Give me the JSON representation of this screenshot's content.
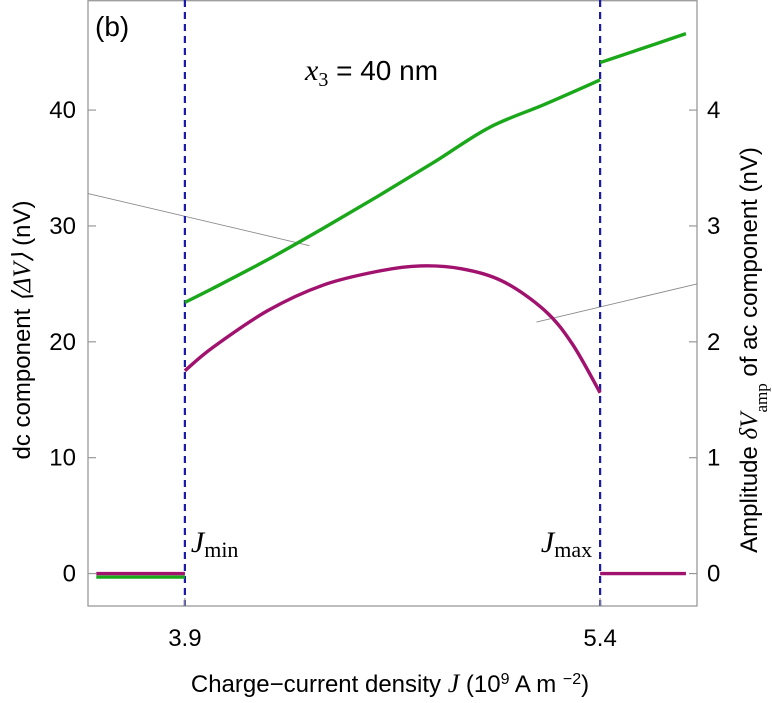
{
  "chart_data": {
    "type": "line",
    "panel_label": "(b)",
    "annotation": {
      "prefix": "x",
      "subscript": "3",
      "text": " =  40 nm"
    },
    "xlabel": {
      "text": "Charge−current  density ",
      "var": "J",
      "unit_open": "  (10",
      "exp": "9",
      "unit_mid": " A m ",
      "exp2": "−2",
      "unit_close": ")"
    },
    "ylabel_left": {
      "text": "dc  component  ",
      "math": "⟨ΔV⟩",
      "unit": "  (nV)"
    },
    "ylabel_right": {
      "text": "Amplitude ",
      "math": "δV",
      "sub": "amp",
      "rest": " of ac component   (nV)"
    },
    "x_ticks": [
      {
        "value": 3.9,
        "label": "3.9"
      },
      {
        "value": 5.4,
        "label": "5.4"
      }
    ],
    "xlim": [
      3.55,
      5.75
    ],
    "ylim_left": [
      -2.8,
      49.5
    ],
    "ylim_right": [
      -0.28,
      4.95
    ],
    "y_ticks_left": [
      0,
      10,
      20,
      30,
      40
    ],
    "y_ticks_right": [
      0,
      1,
      2,
      3,
      4
    ],
    "vlines": [
      {
        "x": 3.9,
        "label": "J",
        "sub": "min",
        "color": "#1a1aa6"
      },
      {
        "x": 5.4,
        "label": "J",
        "sub": "max",
        "color": "#1a1aa6"
      }
    ],
    "series": [
      {
        "axis": "left",
        "color": "#1aa81a",
        "segments": [
          {
            "x": [
              3.58,
              3.9
            ],
            "y": [
              -0.3,
              -0.3
            ]
          },
          {
            "x": [
              3.9,
              4.0,
              4.2,
              4.4,
              4.6,
              4.8,
              5.0,
              5.2,
              5.4
            ],
            "y": [
              23.4,
              24.6,
              27.1,
              29.8,
              32.6,
              35.5,
              38.5,
              40.5,
              42.6
            ]
          },
          {
            "x": [
              5.4,
              5.5,
              5.6,
              5.71
            ],
            "y": [
              44.1,
              44.9,
              45.7,
              46.6
            ]
          }
        ]
      },
      {
        "axis": "right",
        "color": "#a0126e",
        "segments": [
          {
            "x": [
              3.58,
              3.9
            ],
            "y": [
              0.0,
              0.0
            ]
          },
          {
            "x": [
              3.9,
              4.0,
              4.2,
              4.4,
              4.6,
              4.75,
              4.9,
              5.05,
              5.2,
              5.3,
              5.4
            ],
            "y": [
              1.75,
              1.95,
              2.27,
              2.49,
              2.61,
              2.655,
              2.63,
              2.52,
              2.27,
              1.98,
              1.56
            ]
          },
          {
            "x": [
              5.4,
              5.71
            ],
            "y": [
              0.0,
              0.0
            ]
          }
        ]
      }
    ],
    "pointer_lines": [
      {
        "from_axis": "left",
        "x": [
          3.55,
          4.35
        ],
        "y": [
          32.8,
          28.3
        ]
      },
      {
        "from_axis": "right",
        "x": [
          5.17,
          5.75
        ],
        "y": [
          2.17,
          2.5
        ]
      }
    ],
    "colors": {
      "green": "#1aa81a",
      "magenta": "#a0126e",
      "blue": "#1a1aa6",
      "frame": "#999999"
    }
  }
}
